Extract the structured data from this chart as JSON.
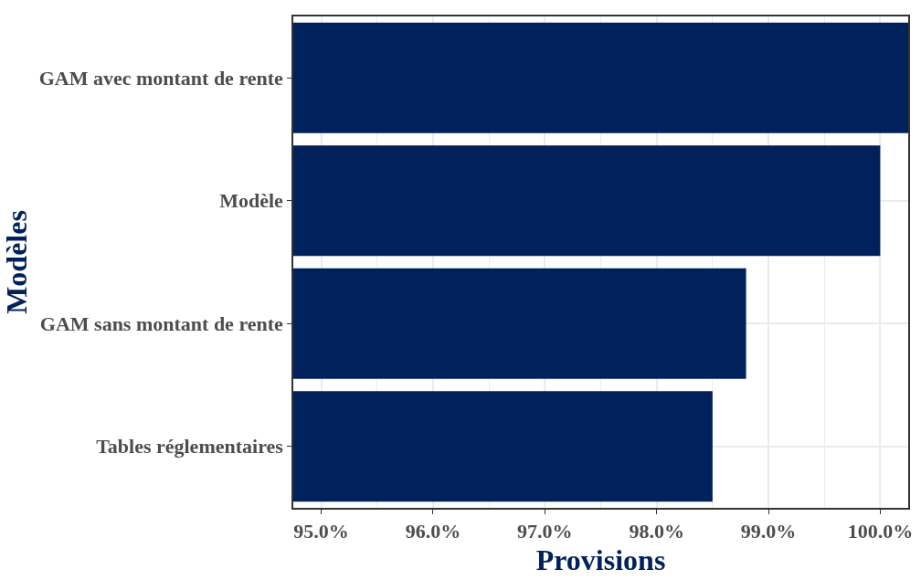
{
  "chart_data": {
    "type": "bar",
    "orientation": "horizontal",
    "xlabel": "Provisions",
    "ylabel": "Modèles",
    "categories": [
      "GAM avec montant de rente",
      "Modèle",
      "GAM sans montant de rente",
      "Tables réglementaires"
    ],
    "values": [
      100.25,
      100.0,
      98.8,
      98.5
    ],
    "color": "#01215c",
    "xlim": [
      94.75,
      100.25
    ],
    "xticks": [
      {
        "value": 95,
        "label": "95.0%"
      },
      {
        "value": 96,
        "label": "96.0%"
      },
      {
        "value": 97,
        "label": "97.0%"
      },
      {
        "value": 98,
        "label": "98.0%"
      },
      {
        "value": 99,
        "label": "99.0%"
      },
      {
        "value": 100,
        "label": "100.0%"
      }
    ],
    "grid": true
  }
}
